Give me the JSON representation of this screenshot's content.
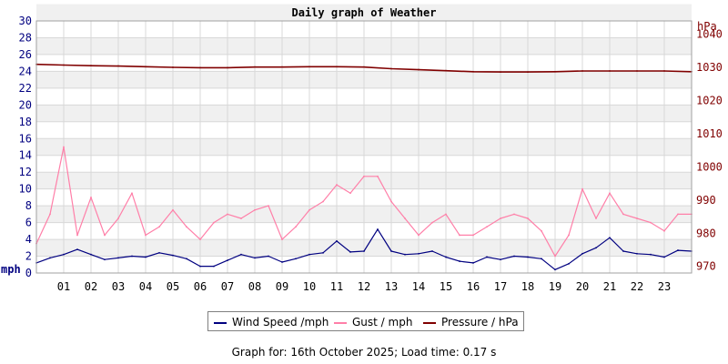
{
  "chart_data": {
    "type": "line",
    "title": "Daily graph of Weather",
    "x_ticks": [
      "01",
      "02",
      "03",
      "04",
      "05",
      "06",
      "07",
      "08",
      "09",
      "10",
      "11",
      "12",
      "13",
      "14",
      "15",
      "16",
      "17",
      "18",
      "19",
      "20",
      "21",
      "22",
      "23"
    ],
    "x_range_hours": [
      0,
      24
    ],
    "grid": true,
    "legend_placement": "bottom-center",
    "left_axis": {
      "label": "mph",
      "range": [
        0,
        30
      ],
      "ticks": [
        0,
        2,
        4,
        6,
        8,
        10,
        12,
        14,
        16,
        18,
        20,
        22,
        24,
        26,
        28,
        30
      ]
    },
    "right_axis": {
      "label": "hPa",
      "range": [
        968,
        1044
      ],
      "ticks": [
        970,
        980,
        990,
        1000,
        1010,
        1020,
        1030,
        1040
      ]
    },
    "series": [
      {
        "name": "Wind Speed /mph",
        "axis": "left",
        "color": "#000080",
        "hours": [
          0,
          0.5,
          1,
          1.5,
          2,
          2.5,
          3,
          3.5,
          4,
          4.5,
          5,
          5.5,
          6,
          6.5,
          7,
          7.5,
          8,
          8.5,
          9,
          9.5,
          10,
          10.5,
          11,
          11.5,
          12,
          12.5,
          13,
          13.5,
          14,
          14.5,
          15,
          15.5,
          16,
          16.5,
          17,
          17.5,
          18,
          18.5,
          19,
          19.5,
          20,
          20.5,
          21,
          21.5,
          22,
          22.5,
          23,
          23.5,
          24
        ],
        "values": [
          1.2,
          1.8,
          2.2,
          2.8,
          2.2,
          1.6,
          1.8,
          2.0,
          1.9,
          2.4,
          2.1,
          1.7,
          0.8,
          0.8,
          1.5,
          2.2,
          1.8,
          2.0,
          1.3,
          1.7,
          2.2,
          2.4,
          3.8,
          2.5,
          2.6,
          5.2,
          2.6,
          2.2,
          2.3,
          2.6,
          1.9,
          1.4,
          1.2,
          1.9,
          1.6,
          2.0,
          1.9,
          1.7,
          0.4,
          1.1,
          2.3,
          3.0,
          4.2,
          2.6,
          2.3,
          2.2,
          1.9,
          2.7,
          2.6
        ]
      },
      {
        "name": "Gust / mph",
        "axis": "left",
        "color": "#ff7fa8",
        "hours": [
          0,
          0.5,
          1,
          1.5,
          2,
          2.5,
          3,
          3.5,
          4,
          4.5,
          5,
          5.5,
          6,
          6.5,
          7,
          7.5,
          8,
          8.5,
          9,
          9.5,
          10,
          10.5,
          11,
          11.5,
          12,
          12.5,
          13,
          13.5,
          14,
          14.5,
          15,
          15.5,
          16,
          16.5,
          17,
          17.5,
          18,
          18.5,
          19,
          19.5,
          20,
          20.5,
          21,
          21.5,
          22,
          22.5,
          23,
          23.5,
          24
        ],
        "values": [
          3.5,
          7.0,
          15.0,
          4.5,
          9.0,
          4.5,
          6.5,
          9.5,
          4.5,
          5.5,
          7.5,
          5.5,
          4.0,
          6.0,
          7.0,
          6.5,
          7.5,
          8.0,
          4.0,
          5.5,
          7.5,
          8.5,
          10.5,
          9.5,
          11.5,
          11.5,
          8.5,
          6.5,
          4.5,
          6.0,
          7.0,
          4.5,
          4.5,
          5.5,
          6.5,
          7.0,
          6.5,
          5.0,
          2.0,
          4.5,
          10.0,
          6.5,
          9.5,
          7.0,
          6.5,
          6.0,
          5.0,
          7.0,
          7.0
        ]
      },
      {
        "name": "Pressure / hPa",
        "axis": "right",
        "color": "#800000",
        "hours": [
          0,
          1,
          2,
          3,
          4,
          5,
          6,
          7,
          8,
          9,
          10,
          11,
          12,
          13,
          14,
          15,
          16,
          17,
          18,
          19,
          20,
          21,
          22,
          23,
          24
        ],
        "values": [
          1030.9,
          1030.7,
          1030.5,
          1030.4,
          1030.2,
          1030.0,
          1029.9,
          1029.9,
          1030.1,
          1030.1,
          1030.2,
          1030.2,
          1030.1,
          1029.6,
          1029.3,
          1029.0,
          1028.7,
          1028.6,
          1028.6,
          1028.7,
          1028.9,
          1028.9,
          1028.9,
          1028.9,
          1028.7
        ]
      }
    ]
  },
  "footer": {
    "text": "Graph for: 16th October 2025; Load time: 0.17 s"
  }
}
